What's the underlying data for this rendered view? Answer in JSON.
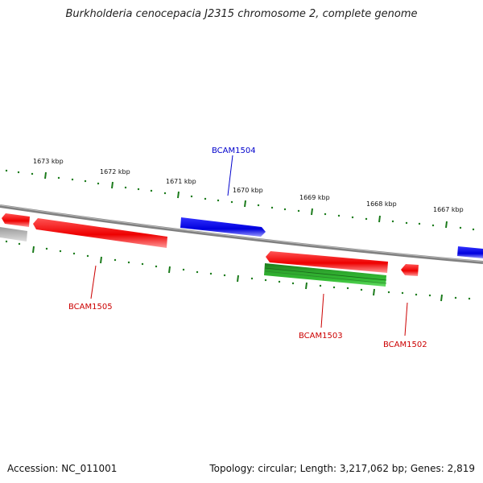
{
  "title": "Burkholderia cenocepacia J2315 chromosome 2, complete genome",
  "footer": {
    "accession": "Accession: NC_011001",
    "topology": "Topology: circular; Length: 3,217,062 bp; Genes: 2,819"
  },
  "colors": {
    "forward_gene": "#0000ee",
    "reverse_gene": "#ee0000",
    "green_feature": "#229922",
    "backbone": "#808080",
    "ticks": "#1a7a1a",
    "partial_gray": "#b0b0b0"
  },
  "ticks": {
    "labels": [
      "1673 kbp",
      "1672 kbp",
      "1671 kbp",
      "1670 kbp",
      "1669 kbp",
      "1668 kbp",
      "1667 kbp"
    ]
  },
  "genes": [
    {
      "id": "BCAM1504",
      "strand": "forward",
      "label": "BCAM1504"
    },
    {
      "id": "BCAM1505",
      "strand": "reverse",
      "label": "BCAM1505"
    },
    {
      "id": "BCAM1503",
      "strand": "reverse",
      "label": "BCAM1503"
    },
    {
      "id": "BCAM1502",
      "strand": "reverse",
      "label": "BCAM1502"
    }
  ]
}
